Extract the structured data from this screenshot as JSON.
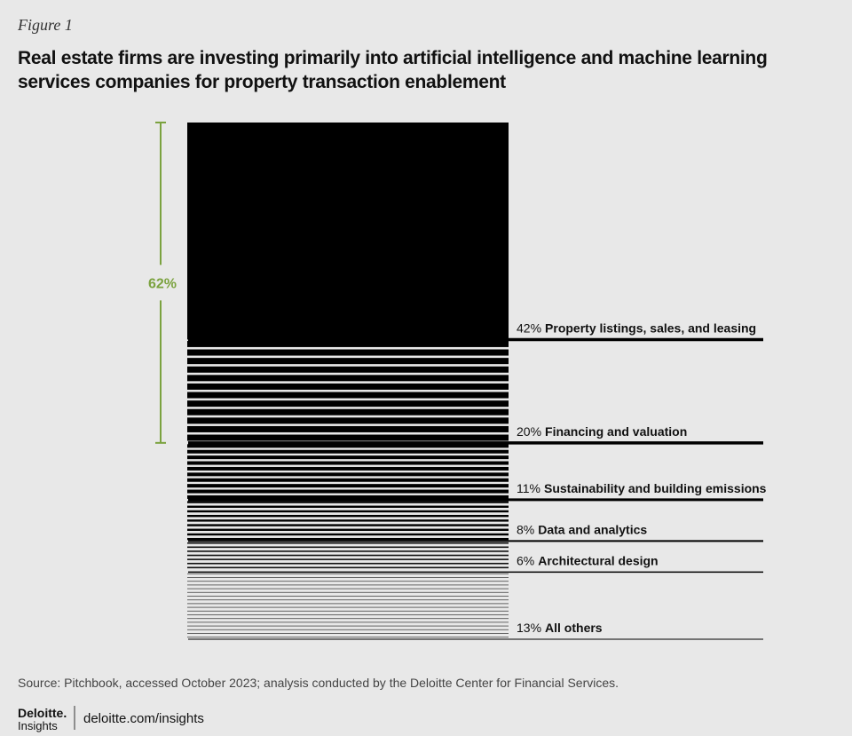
{
  "figure_label": "Figure 1",
  "chart_data": {
    "type": "stacked-block",
    "title": "Real estate firms are investing primarily into artificial intelligence and machine learning services companies for property transaction enablement",
    "categories": [
      "Property listings, sales, and leasing",
      "Financing and valuation",
      "Sustainability and building emissions",
      "Data and analytics",
      "Architectural design",
      "All others"
    ],
    "values": [
      42,
      20,
      11,
      8,
      6,
      13
    ],
    "value_labels": [
      "42%",
      "20%",
      "11%",
      "8%",
      "6%",
      "13%"
    ],
    "bracket": {
      "value": 62,
      "label": "62%",
      "color": "#7ba23f"
    },
    "ylim": [
      0,
      100
    ]
  },
  "source": "Source: Pitchbook, accessed October 2023; analysis conducted by the Deloitte Center for Financial Services.",
  "footer": {
    "brand": "Deloitte.",
    "brand_sub": "Insights",
    "url": "deloitte.com/insights"
  }
}
